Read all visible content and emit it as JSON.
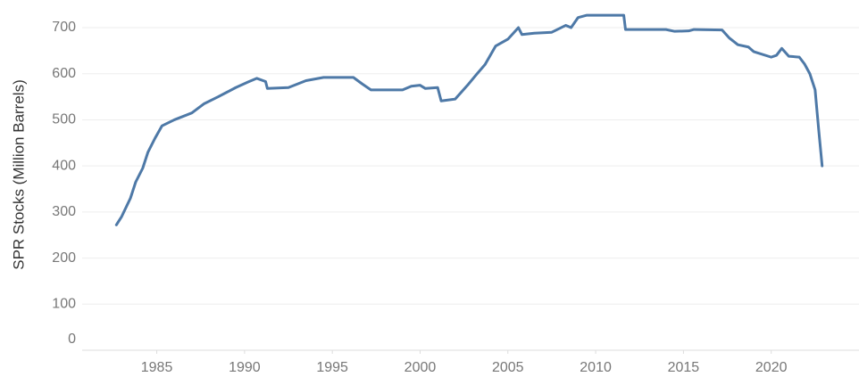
{
  "chart_data": {
    "type": "line",
    "y_label": "SPR Stocks (Million Barrels)",
    "x": [
      1982.7,
      1983.0,
      1983.5,
      1983.8,
      1984.2,
      1984.5,
      1984.9,
      1985.3,
      1986.0,
      1987.0,
      1987.7,
      1988.5,
      1989.5,
      1990.2,
      1990.7,
      1991.2,
      1991.3,
      1992.5,
      1993.5,
      1994.5,
      1996.2,
      1996.7,
      1997.2,
      1999.0,
      1999.5,
      2000.0,
      2000.3,
      2001.0,
      2001.2,
      2002.0,
      2002.7,
      2003.2,
      2003.7,
      2004.3,
      2005.0,
      2005.6,
      2005.8,
      2006.5,
      2007.5,
      2008.3,
      2008.6,
      2009.0,
      2009.5,
      2011.6,
      2011.7,
      2014.0,
      2014.5,
      2015.3,
      2015.6,
      2017.2,
      2017.6,
      2018.1,
      2018.7,
      2019.0,
      2020.0,
      2020.3,
      2020.6,
      2021.0,
      2021.6,
      2021.9,
      2022.2,
      2022.5,
      2022.7,
      2022.9
    ],
    "series": [
      {
        "name": "SPR Stocks",
        "color": "#4e79a7",
        "values": [
          272,
          290,
          330,
          365,
          395,
          430,
          460,
          487,
          500,
          515,
          535,
          550,
          570,
          582,
          590,
          583,
          568,
          570,
          585,
          592,
          592,
          578,
          565,
          565,
          573,
          575,
          568,
          570,
          541,
          545,
          575,
          598,
          620,
          660,
          675,
          700,
          685,
          688,
          690,
          705,
          700,
          722,
          727,
          727,
          696,
          696,
          692,
          693,
          696,
          695,
          678,
          663,
          658,
          648,
          636,
          640,
          655,
          638,
          636,
          621,
          600,
          565,
          480,
          400
        ]
      }
    ],
    "xlim": [
      1980.75,
      2025
    ],
    "xticks": [
      1985,
      1990,
      1995,
      2000,
      2005,
      2010,
      2015,
      2020
    ],
    "ylim": [
      0,
      760
    ],
    "yticks": [
      0,
      100,
      200,
      300,
      400,
      500,
      600,
      700
    ],
    "grid": true
  }
}
